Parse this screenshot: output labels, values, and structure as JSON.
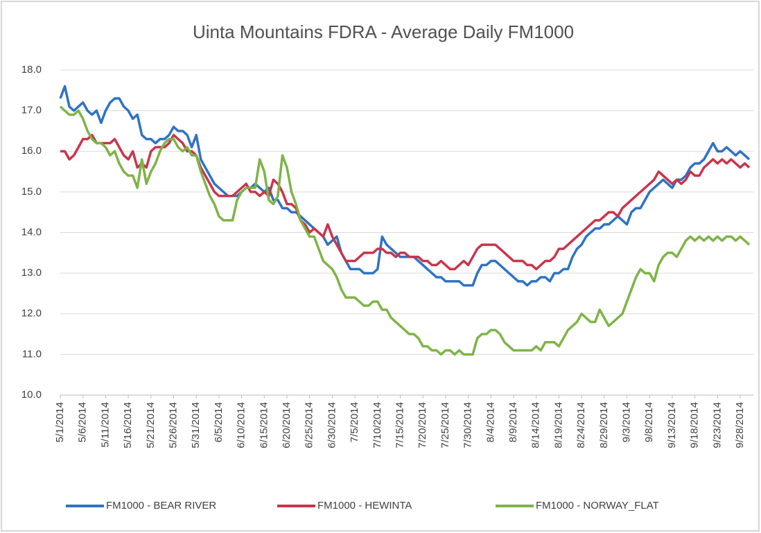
{
  "chart_data": {
    "type": "line",
    "title": "Uinta Mountains FDRA - Average Daily FM1000",
    "legend": "bottom",
    "grid": true,
    "ylim": [
      10,
      18
    ],
    "yticks": [
      {
        "value": 10,
        "label": "10.0"
      },
      {
        "value": 11,
        "label": "11.0"
      },
      {
        "value": 12,
        "label": "12.0"
      },
      {
        "value": 13,
        "label": "13.0"
      },
      {
        "value": 14,
        "label": "14.0"
      },
      {
        "value": 15,
        "label": "15.0"
      },
      {
        "value": 16,
        "label": "16.0"
      },
      {
        "value": 17,
        "label": "17.0"
      },
      {
        "value": 18,
        "label": "18.0"
      }
    ],
    "categories": [
      "5/1/2014",
      null,
      null,
      null,
      null,
      "5/6/2014",
      null,
      null,
      null,
      null,
      "5/11/2014",
      null,
      null,
      null,
      null,
      "5/16/2014",
      null,
      null,
      null,
      null,
      "5/21/2014",
      null,
      null,
      null,
      null,
      "5/26/2014",
      null,
      null,
      null,
      null,
      "5/31/2014",
      null,
      null,
      null,
      null,
      "6/5/2014",
      null,
      null,
      null,
      null,
      "6/10/2014",
      null,
      null,
      null,
      null,
      "6/15/2014",
      null,
      null,
      null,
      null,
      "6/20/2014",
      null,
      null,
      null,
      null,
      "6/25/2014",
      null,
      null,
      null,
      null,
      "6/30/2014",
      null,
      null,
      null,
      null,
      "7/5/2014",
      null,
      null,
      null,
      null,
      "7/10/2014",
      null,
      null,
      null,
      null,
      "7/15/2014",
      null,
      null,
      null,
      null,
      "7/20/2014",
      null,
      null,
      null,
      null,
      "7/25/2014",
      null,
      null,
      null,
      null,
      "7/30/2014",
      null,
      null,
      null,
      null,
      "8/4/2014",
      null,
      null,
      null,
      null,
      "8/9/2014",
      null,
      null,
      null,
      null,
      "8/14/2014",
      null,
      null,
      null,
      null,
      "8/19/2014",
      null,
      null,
      null,
      null,
      "8/24/2014",
      null,
      null,
      null,
      null,
      "8/29/2014",
      null,
      null,
      null,
      null,
      "9/3/2014",
      null,
      null,
      null,
      null,
      "9/8/2014",
      null,
      null,
      null,
      null,
      "9/13/2014",
      null,
      null,
      null,
      null,
      "9/18/2014",
      null,
      null,
      null,
      null,
      "9/23/2014",
      null,
      null,
      null,
      null,
      "9/28/2014",
      null,
      null
    ],
    "series": [
      {
        "name": "FM1000 - BEAR RIVER",
        "color": "#2f72c4",
        "values": [
          17.3,
          17.6,
          17.1,
          17.0,
          17.1,
          17.2,
          17.0,
          16.9,
          17.0,
          16.7,
          17.0,
          17.2,
          17.3,
          17.3,
          17.1,
          17.0,
          16.8,
          16.9,
          16.4,
          16.3,
          16.3,
          16.2,
          16.3,
          16.3,
          16.4,
          16.6,
          16.5,
          16.5,
          16.4,
          16.1,
          16.4,
          15.8,
          15.6,
          15.4,
          15.2,
          15.1,
          15.0,
          14.9,
          14.9,
          14.9,
          15.0,
          15.1,
          15.1,
          15.2,
          15.1,
          15.0,
          15.1,
          14.8,
          14.8,
          14.6,
          14.6,
          14.5,
          14.5,
          14.4,
          14.3,
          14.2,
          14.1,
          14.0,
          13.9,
          13.7,
          13.8,
          13.9,
          13.5,
          13.3,
          13.1,
          13.1,
          13.1,
          13.0,
          13.0,
          13.0,
          13.1,
          13.9,
          13.7,
          13.6,
          13.5,
          13.4,
          13.4,
          13.4,
          13.4,
          13.3,
          13.2,
          13.1,
          13.0,
          12.9,
          12.9,
          12.8,
          12.8,
          12.8,
          12.8,
          12.7,
          12.7,
          12.7,
          13.0,
          13.2,
          13.2,
          13.3,
          13.3,
          13.2,
          13.1,
          13.0,
          12.9,
          12.8,
          12.8,
          12.7,
          12.8,
          12.8,
          12.9,
          12.9,
          12.8,
          13.0,
          13.0,
          13.1,
          13.1,
          13.4,
          13.6,
          13.7,
          13.9,
          14.0,
          14.1,
          14.1,
          14.2,
          14.2,
          14.3,
          14.4,
          14.3,
          14.2,
          14.5,
          14.6,
          14.6,
          14.8,
          15.0,
          15.1,
          15.2,
          15.3,
          15.2,
          15.1,
          15.3,
          15.3,
          15.4,
          15.6,
          15.7,
          15.7,
          15.8,
          16.0,
          16.2,
          16.0,
          16.0,
          16.1,
          16.0,
          15.9,
          16.0,
          15.9,
          15.8
        ]
      },
      {
        "name": "FM1000 - HEWINTA",
        "color": "#c8354b",
        "values": [
          16.0,
          16.0,
          15.8,
          15.9,
          16.1,
          16.3,
          16.3,
          16.4,
          16.2,
          16.2,
          16.2,
          16.2,
          16.3,
          16.1,
          15.9,
          15.8,
          16.0,
          15.6,
          15.7,
          15.6,
          16.0,
          16.1,
          16.1,
          16.1,
          16.2,
          16.4,
          16.3,
          16.2,
          16.0,
          16.0,
          15.9,
          15.6,
          15.4,
          15.2,
          15.0,
          14.9,
          14.9,
          14.9,
          14.9,
          15.0,
          15.1,
          15.2,
          15.0,
          15.0,
          14.9,
          15.0,
          14.9,
          15.3,
          15.2,
          15.0,
          14.7,
          14.7,
          14.6,
          14.3,
          14.2,
          14.0,
          14.1,
          14.0,
          13.9,
          14.2,
          13.9,
          13.7,
          13.5,
          13.3,
          13.3,
          13.3,
          13.4,
          13.5,
          13.5,
          13.5,
          13.6,
          13.6,
          13.5,
          13.5,
          13.4,
          13.5,
          13.5,
          13.4,
          13.4,
          13.4,
          13.3,
          13.3,
          13.2,
          13.2,
          13.3,
          13.2,
          13.1,
          13.1,
          13.2,
          13.3,
          13.2,
          13.4,
          13.6,
          13.7,
          13.7,
          13.7,
          13.7,
          13.6,
          13.5,
          13.4,
          13.3,
          13.3,
          13.3,
          13.2,
          13.2,
          13.1,
          13.2,
          13.3,
          13.3,
          13.4,
          13.6,
          13.6,
          13.7,
          13.8,
          13.9,
          14.0,
          14.1,
          14.2,
          14.3,
          14.3,
          14.4,
          14.5,
          14.5,
          14.4,
          14.6,
          14.7,
          14.8,
          14.9,
          15.0,
          15.1,
          15.2,
          15.3,
          15.5,
          15.4,
          15.3,
          15.2,
          15.3,
          15.2,
          15.3,
          15.5,
          15.4,
          15.4,
          15.6,
          15.7,
          15.8,
          15.7,
          15.8,
          15.7,
          15.8,
          15.7,
          15.6,
          15.7,
          15.6
        ]
      },
      {
        "name": "FM1000 - NORWAY_FLAT",
        "color": "#7fb347",
        "values": [
          17.1,
          17.0,
          16.9,
          16.9,
          17.0,
          16.8,
          16.5,
          16.3,
          16.2,
          16.2,
          16.1,
          15.9,
          16.0,
          15.7,
          15.5,
          15.4,
          15.4,
          15.1,
          15.8,
          15.2,
          15.5,
          15.7,
          16.0,
          16.2,
          16.3,
          16.3,
          16.1,
          16.0,
          16.1,
          15.9,
          15.9,
          15.5,
          15.2,
          14.9,
          14.7,
          14.4,
          14.3,
          14.3,
          14.3,
          14.8,
          15.0,
          15.1,
          15.1,
          15.1,
          15.8,
          15.5,
          14.8,
          14.7,
          14.9,
          15.9,
          15.6,
          15.0,
          14.7,
          14.3,
          14.1,
          13.9,
          13.9,
          13.6,
          13.3,
          13.2,
          13.1,
          12.9,
          12.6,
          12.4,
          12.4,
          12.4,
          12.3,
          12.2,
          12.2,
          12.3,
          12.3,
          12.1,
          12.1,
          11.9,
          11.8,
          11.7,
          11.6,
          11.5,
          11.5,
          11.4,
          11.2,
          11.2,
          11.1,
          11.1,
          11.0,
          11.1,
          11.1,
          11.0,
          11.1,
          11.0,
          11.0,
          11.0,
          11.4,
          11.5,
          11.5,
          11.6,
          11.6,
          11.5,
          11.3,
          11.2,
          11.1,
          11.1,
          11.1,
          11.1,
          11.1,
          11.2,
          11.1,
          11.3,
          11.3,
          11.3,
          11.2,
          11.4,
          11.6,
          11.7,
          11.8,
          12.0,
          11.9,
          11.8,
          11.8,
          12.1,
          11.9,
          11.7,
          11.8,
          11.9,
          12.0,
          12.3,
          12.6,
          12.9,
          13.1,
          13.0,
          13.0,
          12.8,
          13.2,
          13.4,
          13.5,
          13.5,
          13.4,
          13.6,
          13.8,
          13.9,
          13.8,
          13.9,
          13.8,
          13.9,
          13.8,
          13.9,
          13.8,
          13.9,
          13.9,
          13.8,
          13.9,
          13.8,
          13.7
        ]
      }
    ]
  }
}
